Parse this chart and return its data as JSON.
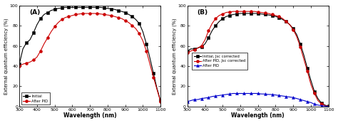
{
  "panel_A": {
    "label": "(A)",
    "initial": {
      "wavelengths": [
        300,
        320,
        340,
        360,
        380,
        400,
        420,
        440,
        460,
        480,
        500,
        520,
        540,
        560,
        580,
        600,
        620,
        640,
        660,
        680,
        700,
        720,
        740,
        760,
        780,
        800,
        820,
        840,
        860,
        880,
        900,
        920,
        940,
        960,
        980,
        1000,
        1020,
        1040,
        1060,
        1080,
        1100
      ],
      "eqe": [
        42,
        57,
        63,
        66,
        73,
        81,
        87,
        91,
        93,
        95,
        96,
        97,
        97.5,
        98,
        98,
        98,
        98,
        98,
        98,
        98,
        98,
        98,
        98,
        98,
        97.5,
        97,
        96.5,
        96,
        95,
        94,
        93,
        91,
        89,
        86,
        82,
        74,
        62,
        48,
        33,
        18,
        6
      ],
      "color": "#000000",
      "marker": "s",
      "label": "Initial"
    },
    "after_pid": {
      "wavelengths": [
        300,
        320,
        340,
        360,
        380,
        400,
        420,
        440,
        460,
        480,
        500,
        520,
        540,
        560,
        580,
        600,
        620,
        640,
        660,
        680,
        700,
        720,
        740,
        760,
        780,
        800,
        820,
        840,
        860,
        880,
        900,
        920,
        940,
        960,
        980,
        1000,
        1020,
        1040,
        1060,
        1080,
        1100
      ],
      "eqe": [
        40,
        42,
        43,
        44,
        46,
        49,
        55,
        62,
        68,
        74,
        79,
        83,
        86,
        88,
        89,
        90,
        91,
        91.5,
        92,
        92,
        92,
        92,
        92,
        91.5,
        91,
        90.5,
        90,
        89,
        88,
        87,
        85,
        83,
        80,
        77,
        72,
        65,
        55,
        42,
        29,
        17,
        5
      ],
      "color": "#cc0000",
      "marker": "o",
      "label": "After PID"
    },
    "xlabel": "Wavelength (nm)",
    "ylabel": "External quantum efficiency (%)",
    "xlim": [
      300,
      1100
    ],
    "ylim": [
      0,
      100
    ],
    "xticks": [
      300,
      400,
      500,
      600,
      700,
      800,
      900,
      1000,
      1100
    ],
    "yticks": [
      0,
      20,
      40,
      60,
      80,
      100
    ]
  },
  "panel_B": {
    "label": "(B)",
    "initial_jsc": {
      "wavelengths": [
        300,
        320,
        340,
        360,
        380,
        400,
        420,
        440,
        460,
        480,
        500,
        520,
        540,
        560,
        580,
        600,
        620,
        640,
        660,
        680,
        700,
        720,
        740,
        760,
        780,
        800,
        820,
        840,
        860,
        880,
        900,
        920,
        940,
        960,
        980,
        1000,
        1020,
        1040,
        1060,
        1080,
        1100
      ],
      "eqe": [
        55,
        57,
        57,
        58,
        59,
        62,
        68,
        75,
        80,
        84,
        87,
        89,
        90,
        91,
        91.5,
        92,
        92,
        92,
        92,
        92,
        92,
        91.5,
        91,
        90.5,
        90,
        89,
        88,
        86,
        84,
        81,
        77,
        71,
        62,
        51,
        38,
        26,
        15,
        8,
        3.5,
        1.5,
        0.5
      ],
      "color": "#000000",
      "marker": "s",
      "label": "Initial, Jsc corrected"
    },
    "after_pid_jsc": {
      "wavelengths": [
        300,
        320,
        340,
        360,
        380,
        400,
        420,
        440,
        460,
        480,
        500,
        520,
        540,
        560,
        580,
        600,
        620,
        640,
        660,
        680,
        700,
        720,
        740,
        760,
        780,
        800,
        820,
        840,
        860,
        880,
        900,
        920,
        940,
        960,
        980,
        1000,
        1020,
        1040,
        1060,
        1080,
        1100
      ],
      "eqe": [
        53,
        55,
        56,
        58,
        60,
        66,
        75,
        82,
        87,
        90,
        91.5,
        93,
        93.5,
        94,
        94,
        94,
        94,
        94,
        94,
        94,
        93.5,
        93,
        92.5,
        92,
        91,
        90,
        89,
        87,
        84,
        81,
        76,
        69,
        59,
        47,
        35,
        22,
        13,
        6,
        2.5,
        1,
        0.3
      ],
      "color": "#cc0000",
      "marker": "o",
      "label": "After PID, Jsc corrected"
    },
    "after_pid": {
      "wavelengths": [
        300,
        320,
        340,
        360,
        380,
        400,
        420,
        440,
        460,
        480,
        500,
        520,
        540,
        560,
        580,
        600,
        620,
        640,
        660,
        680,
        700,
        720,
        740,
        760,
        780,
        800,
        820,
        840,
        860,
        880,
        900,
        920,
        940,
        960,
        980,
        1000,
        1020,
        1040,
        1060,
        1080,
        1100
      ],
      "eqe": [
        5,
        6,
        7,
        7,
        8,
        8.5,
        9,
        10,
        10.5,
        11,
        11.5,
        12,
        12.5,
        13,
        13,
        13,
        13,
        13,
        13,
        13,
        13,
        12.5,
        12.5,
        12,
        12,
        11.5,
        11,
        10.5,
        10,
        9.5,
        9,
        8,
        7,
        6,
        5,
        4,
        2.5,
        1.5,
        1,
        0.5,
        0.2
      ],
      "color": "#0000cc",
      "marker": "^",
      "label": "After PID"
    },
    "xlabel": "Wavelength (nm)",
    "ylabel": "External quantum efficiency (%)",
    "xlim": [
      300,
      1100
    ],
    "ylim": [
      0,
      100
    ],
    "xticks": [
      300,
      400,
      500,
      600,
      700,
      800,
      900,
      1000,
      1100
    ],
    "yticks": [
      0,
      20,
      40,
      60,
      80,
      100
    ]
  },
  "figsize": [
    4.74,
    1.73
  ],
  "dpi": 100
}
